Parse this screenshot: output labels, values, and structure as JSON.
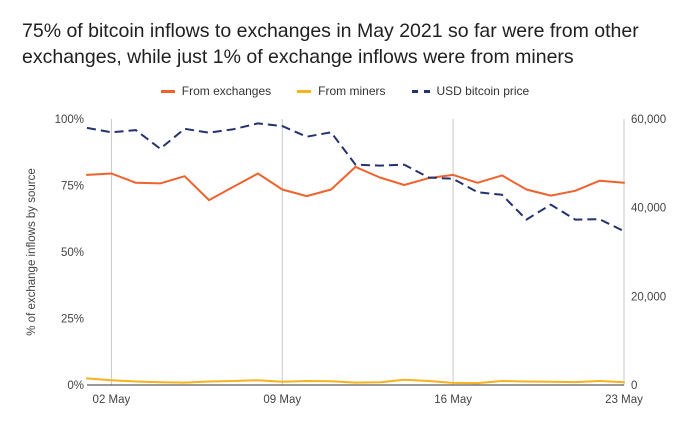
{
  "chart_data": {
    "type": "line",
    "title": "75% of bitcoin inflows to exchanges in May 2021 so far were from other exchanges, while just 1% of exchange inflows were from miners",
    "ylabel": "% of exchange inflows by source",
    "y2label": "",
    "xlabel": "",
    "x_tick_labels": [
      "02 May",
      "09 May",
      "16 May",
      "23 May"
    ],
    "y_tick_labels": [
      "0%",
      "25%",
      "50%",
      "75%",
      "100%"
    ],
    "y2_tick_labels": [
      "0",
      "20,000",
      "40,000",
      "60,000"
    ],
    "ylim": [
      0,
      100
    ],
    "y2lim": [
      0,
      60000
    ],
    "grid": "vertical lines at x ticks",
    "legend_position": "top-center",
    "x": [
      "01 May",
      "02 May",
      "03 May",
      "04 May",
      "05 May",
      "06 May",
      "07 May",
      "08 May",
      "09 May",
      "10 May",
      "11 May",
      "12 May",
      "13 May",
      "14 May",
      "15 May",
      "16 May",
      "17 May",
      "18 May",
      "19 May",
      "20 May",
      "21 May",
      "22 May",
      "23 May"
    ],
    "series": [
      {
        "name": "From exchanges",
        "axis": "left",
        "color": "#f0622d",
        "style": "solid",
        "values": [
          79,
          79.5,
          76,
          75.8,
          78.5,
          69.5,
          74.5,
          79.5,
          73.5,
          71,
          73.5,
          82,
          78,
          75.2,
          77.8,
          79,
          76,
          78.8,
          73.5,
          71.2,
          73,
          76.8,
          76
        ]
      },
      {
        "name": "From miners",
        "axis": "left",
        "color": "#f6b31d",
        "style": "solid",
        "values": [
          2.5,
          1.8,
          1.3,
          1.0,
          0.9,
          1.3,
          1.5,
          1.8,
          1.2,
          1.5,
          1.4,
          0.9,
          1.0,
          2.0,
          1.5,
          0.8,
          0.7,
          1.5,
          1.3,
          1.2,
          1.1,
          1.5,
          1.0
        ]
      },
      {
        "name": "USD bitcoin price",
        "axis": "right",
        "color": "#23336e",
        "style": "dashed",
        "values": [
          58000,
          57000,
          57500,
          53300,
          57800,
          56900,
          57700,
          59000,
          58400,
          56000,
          57000,
          49700,
          49500,
          49700,
          46800,
          46500,
          43500,
          42900,
          37300,
          40700,
          37300,
          37400,
          34700
        ]
      }
    ]
  }
}
